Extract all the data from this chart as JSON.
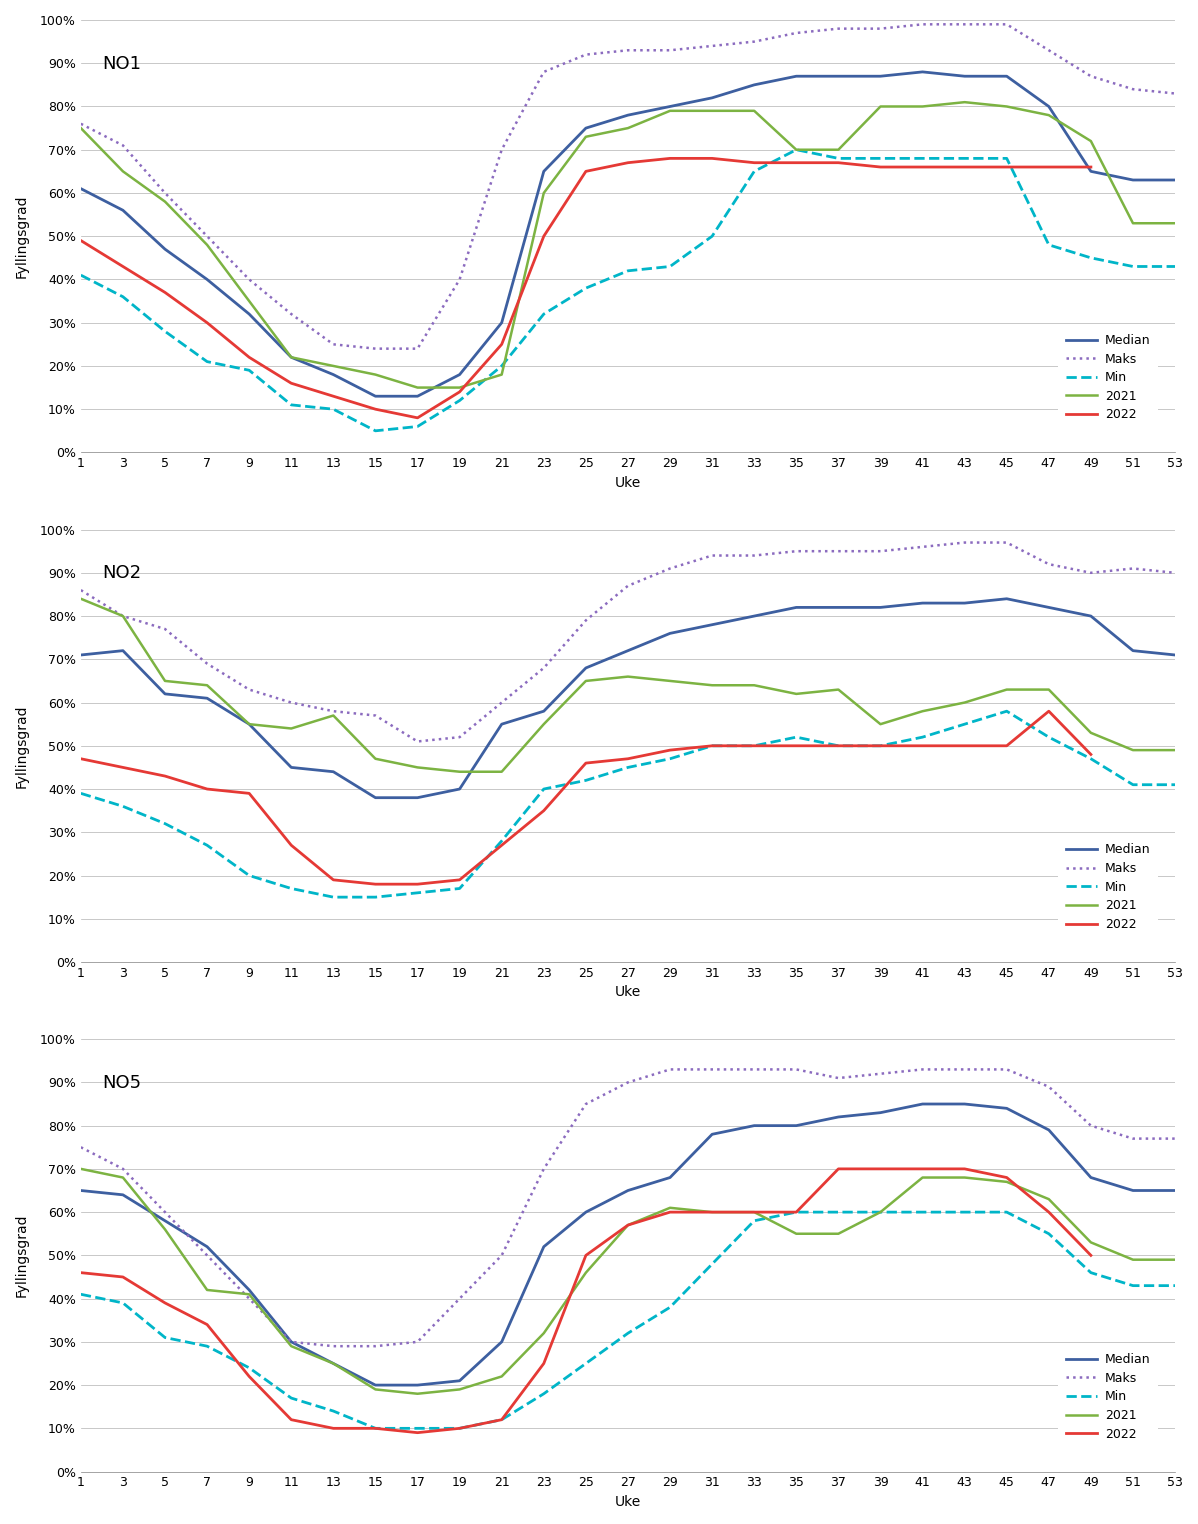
{
  "weeks": [
    1,
    3,
    5,
    7,
    9,
    11,
    13,
    15,
    17,
    19,
    21,
    23,
    25,
    27,
    29,
    31,
    33,
    35,
    37,
    39,
    41,
    43,
    45,
    47,
    49,
    51,
    53
  ],
  "NO1": {
    "median": [
      61,
      56,
      47,
      40,
      32,
      22,
      18,
      13,
      13,
      18,
      30,
      65,
      75,
      78,
      80,
      82,
      85,
      87,
      87,
      87,
      88,
      87,
      87,
      80,
      65,
      63,
      63
    ],
    "maks": [
      76,
      71,
      60,
      50,
      40,
      32,
      25,
      24,
      24,
      40,
      70,
      88,
      92,
      93,
      93,
      94,
      95,
      97,
      98,
      98,
      99,
      99,
      99,
      93,
      87,
      84,
      83
    ],
    "min": [
      41,
      36,
      28,
      21,
      19,
      11,
      10,
      5,
      6,
      12,
      20,
      32,
      38,
      42,
      43,
      50,
      65,
      70,
      68,
      68,
      68,
      68,
      68,
      48,
      45,
      43,
      43
    ],
    "y2021": [
      75,
      65,
      58,
      48,
      35,
      22,
      20,
      18,
      15,
      15,
      18,
      60,
      73,
      75,
      79,
      79,
      79,
      70,
      70,
      80,
      80,
      81,
      80,
      78,
      72,
      53,
      53
    ],
    "y2022": [
      49,
      43,
      37,
      30,
      22,
      16,
      13,
      10,
      8,
      14,
      25,
      50,
      65,
      67,
      68,
      68,
      67,
      67,
      67,
      66,
      66,
      66,
      66,
      66,
      66,
      null,
      null
    ]
  },
  "NO2": {
    "median": [
      71,
      72,
      62,
      61,
      55,
      45,
      44,
      38,
      38,
      40,
      55,
      58,
      68,
      72,
      76,
      78,
      80,
      82,
      82,
      82,
      83,
      83,
      84,
      82,
      80,
      72,
      71
    ],
    "maks": [
      86,
      80,
      77,
      69,
      63,
      60,
      58,
      57,
      51,
      52,
      60,
      68,
      79,
      87,
      91,
      94,
      94,
      95,
      95,
      95,
      96,
      97,
      97,
      92,
      90,
      91,
      90
    ],
    "min": [
      39,
      36,
      32,
      27,
      20,
      17,
      15,
      15,
      16,
      17,
      28,
      40,
      42,
      45,
      47,
      50,
      50,
      52,
      50,
      50,
      52,
      55,
      58,
      52,
      47,
      41,
      41
    ],
    "y2021": [
      84,
      80,
      65,
      64,
      55,
      54,
      57,
      47,
      45,
      44,
      44,
      55,
      65,
      66,
      65,
      64,
      64,
      62,
      63,
      55,
      58,
      60,
      63,
      63,
      53,
      49,
      49
    ],
    "y2022": [
      47,
      45,
      43,
      40,
      39,
      27,
      19,
      18,
      18,
      19,
      27,
      35,
      46,
      47,
      49,
      50,
      50,
      50,
      50,
      50,
      50,
      50,
      50,
      58,
      48,
      null,
      null
    ]
  },
  "NO5": {
    "median": [
      65,
      64,
      58,
      52,
      42,
      30,
      25,
      20,
      20,
      21,
      30,
      52,
      60,
      65,
      68,
      78,
      80,
      80,
      82,
      83,
      85,
      85,
      84,
      79,
      68,
      65,
      65
    ],
    "maks": [
      75,
      70,
      60,
      50,
      40,
      30,
      29,
      29,
      30,
      40,
      50,
      70,
      85,
      90,
      93,
      93,
      93,
      93,
      91,
      92,
      93,
      93,
      93,
      89,
      80,
      77,
      77
    ],
    "min": [
      41,
      39,
      31,
      29,
      24,
      17,
      14,
      10,
      10,
      10,
      12,
      18,
      25,
      32,
      38,
      48,
      58,
      60,
      60,
      60,
      60,
      60,
      60,
      55,
      46,
      43,
      43
    ],
    "y2021": [
      70,
      68,
      56,
      42,
      41,
      29,
      25,
      19,
      18,
      19,
      22,
      32,
      46,
      57,
      61,
      60,
      60,
      55,
      55,
      60,
      68,
      68,
      67,
      63,
      53,
      49,
      49
    ],
    "y2022": [
      46,
      45,
      39,
      34,
      22,
      12,
      10,
      10,
      9,
      10,
      12,
      25,
      50,
      57,
      60,
      60,
      60,
      60,
      70,
      70,
      70,
      70,
      68,
      60,
      50,
      null,
      null
    ]
  },
  "colors": {
    "median": "#3d5fa0",
    "maks": "#8b6bbf",
    "min": "#00b5c8",
    "y2021": "#7cb342",
    "y2022": "#e53935"
  },
  "ylabel": "Fyllingsgrad",
  "xlabel": "Uke",
  "panel_labels": [
    "NO1",
    "NO2",
    "NO5"
  ],
  "legend_labels": [
    "Median",
    "Maks",
    "Min",
    "2021",
    "2022"
  ]
}
